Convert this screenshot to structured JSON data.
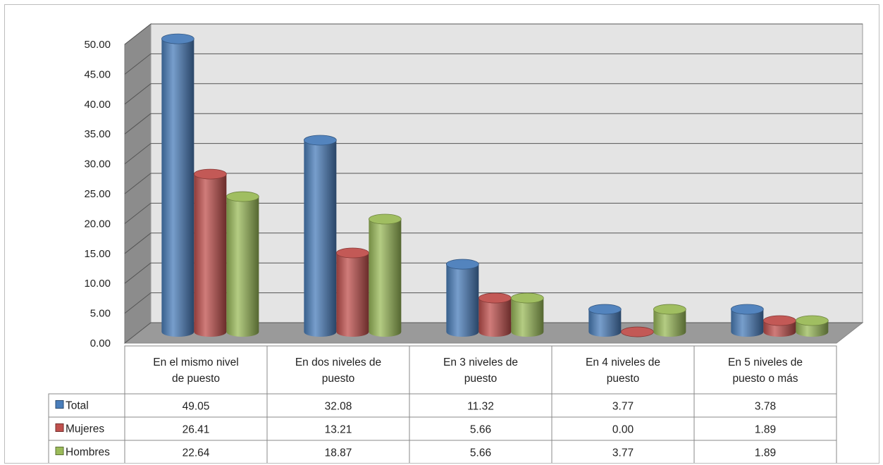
{
  "chart_data": {
    "type": "bar",
    "style": "3d-cylinder",
    "categories": [
      "En el mismo  nivel de puesto",
      "En dos niveles de puesto",
      "En 3 niveles de puesto",
      "En 4 niveles de puesto",
      "En 5 niveles de puesto o más"
    ],
    "category_lines": [
      [
        "En el mismo  nivel",
        "de puesto"
      ],
      [
        "En dos niveles de",
        "puesto"
      ],
      [
        "En 3 niveles de",
        "puesto"
      ],
      [
        "En 4 niveles de",
        "puesto"
      ],
      [
        "En 5 niveles de",
        "puesto o más"
      ]
    ],
    "series": [
      {
        "name": "Total",
        "color": "#4a7ebb",
        "values": [
          49.05,
          32.08,
          11.32,
          3.77,
          3.78
        ]
      },
      {
        "name": "Mujeres",
        "color": "#c0504d",
        "values": [
          26.41,
          13.21,
          5.66,
          0.0,
          1.89
        ]
      },
      {
        "name": "Hombres",
        "color": "#9bbb59",
        "values": [
          22.64,
          18.87,
          5.66,
          3.77,
          1.89
        ]
      }
    ],
    "table_values": [
      [
        "49.05",
        "32.08",
        "11.32",
        "3.77",
        "3.78"
      ],
      [
        "26.41",
        "13.21",
        "5.66",
        "0.00",
        "1.89"
      ],
      [
        "22.64",
        "18.87",
        "5.66",
        "3.77",
        "1.89"
      ]
    ],
    "y_ticks": [
      "0.00",
      "5.00",
      "10.00",
      "15.00",
      "20.00",
      "25.00",
      "30.00",
      "35.00",
      "40.00",
      "45.00",
      "50.00"
    ],
    "ylim": [
      0,
      50
    ],
    "grid": true,
    "legend": "data-table"
  }
}
